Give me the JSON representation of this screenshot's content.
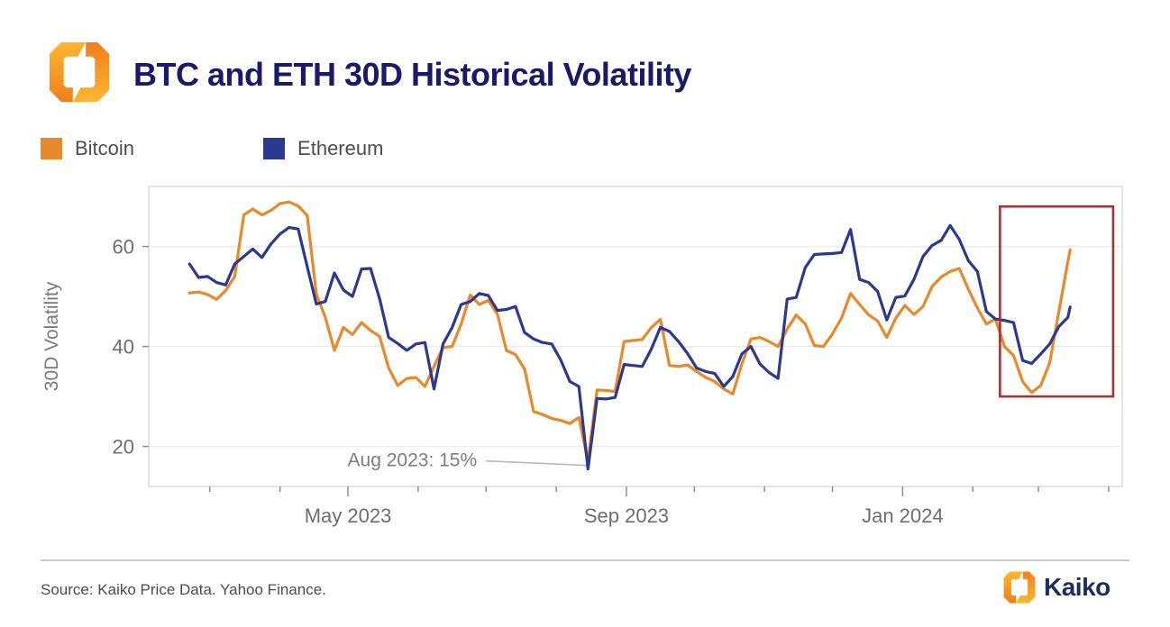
{
  "header": {
    "title": "BTC and ETH 30D Historical Volatility"
  },
  "legend": {
    "items": [
      {
        "label": "Bitcoin",
        "color": "#E8892B"
      },
      {
        "label": "Ethereum",
        "color": "#2B3990"
      }
    ]
  },
  "chart_data": {
    "type": "line",
    "title": "BTC and ETH 30D Historical Volatility",
    "xlabel": "",
    "ylabel": "30D Volatility",
    "ylim": [
      12,
      72
    ],
    "yticks": [
      20,
      40,
      60
    ],
    "xlim": [
      "2023-02-02",
      "2024-04-07"
    ],
    "xticks_major": [
      {
        "date": "2023-05-01",
        "label": "May 2023"
      },
      {
        "date": "2023-09-01",
        "label": "Sep 2023"
      },
      {
        "date": "2024-01-01",
        "label": "Jan 2024"
      }
    ],
    "grid": "horizontal",
    "legend_position": "top-left-above-plot",
    "x": [
      "2023-02-20",
      "2023-02-24",
      "2023-02-28",
      "2023-03-04",
      "2023-03-08",
      "2023-03-12",
      "2023-03-16",
      "2023-03-20",
      "2023-03-24",
      "2023-03-28",
      "2023-04-01",
      "2023-04-05",
      "2023-04-09",
      "2023-04-13",
      "2023-04-17",
      "2023-04-21",
      "2023-04-25",
      "2023-04-29",
      "2023-05-03",
      "2023-05-07",
      "2023-05-11",
      "2023-05-15",
      "2023-05-19",
      "2023-05-23",
      "2023-05-27",
      "2023-05-31",
      "2023-06-04",
      "2023-06-08",
      "2023-06-12",
      "2023-06-16",
      "2023-06-20",
      "2023-06-24",
      "2023-06-28",
      "2023-07-02",
      "2023-07-06",
      "2023-07-10",
      "2023-07-14",
      "2023-07-18",
      "2023-07-22",
      "2023-07-26",
      "2023-07-30",
      "2023-08-03",
      "2023-08-07",
      "2023-08-11",
      "2023-08-15",
      "2023-08-19",
      "2023-08-23",
      "2023-08-27",
      "2023-08-31",
      "2023-09-04",
      "2023-09-08",
      "2023-09-12",
      "2023-09-16",
      "2023-09-20",
      "2023-09-24",
      "2023-09-28",
      "2023-10-02",
      "2023-10-06",
      "2023-10-10",
      "2023-10-14",
      "2023-10-18",
      "2023-10-22",
      "2023-10-26",
      "2023-10-30",
      "2023-11-03",
      "2023-11-07",
      "2023-11-11",
      "2023-11-15",
      "2023-11-19",
      "2023-11-23",
      "2023-11-27",
      "2023-12-01",
      "2023-12-05",
      "2023-12-09",
      "2023-12-13",
      "2023-12-17",
      "2023-12-21",
      "2023-12-25",
      "2023-12-29",
      "2024-01-02",
      "2024-01-06",
      "2024-01-10",
      "2024-01-14",
      "2024-01-18",
      "2024-01-22",
      "2024-01-26",
      "2024-01-30",
      "2024-02-03",
      "2024-02-07",
      "2024-02-11",
      "2024-02-15",
      "2024-02-19",
      "2024-02-23",
      "2024-02-27",
      "2024-03-02",
      "2024-03-06",
      "2024-03-10",
      "2024-03-14",
      "2024-03-15"
    ],
    "series": [
      {
        "name": "Bitcoin",
        "color": "#E8892B",
        "values": [
          50.7,
          50.9,
          50.4,
          49.4,
          51.2,
          54.0,
          66.3,
          67.5,
          66.3,
          67.2,
          68.6,
          68.9,
          68.1,
          66.2,
          50.5,
          45.8,
          39.2,
          43.8,
          42.4,
          44.8,
          43.2,
          42.0,
          35.7,
          32.2,
          33.6,
          33.8,
          32.0,
          36.0,
          39.8,
          40.0,
          44.5,
          50.3,
          48.4,
          49.2,
          46.5,
          39.2,
          38.4,
          35.5,
          27.0,
          26.4,
          25.6,
          25.2,
          24.6,
          25.8,
          17.1,
          31.3,
          31.2,
          31.0,
          41.0,
          41.2,
          41.4,
          43.8,
          45.4,
          36.2,
          36.0,
          36.3,
          35.0,
          33.8,
          33.0,
          31.5,
          30.5,
          36.5,
          41.5,
          41.8,
          41.0,
          40.0,
          43.5,
          46.3,
          44.5,
          40.2,
          40.0,
          42.5,
          45.7,
          50.6,
          48.4,
          46.3,
          45.1,
          41.8,
          45.7,
          48.2,
          46.4,
          48.0,
          52.0,
          53.9,
          55.0,
          55.6,
          51.5,
          47.7,
          44.5,
          45.5,
          40.0,
          38.2,
          33.0,
          30.8,
          32.2,
          36.8,
          47.0,
          57.0,
          59.3
        ]
      },
      {
        "name": "Ethereum",
        "color": "#2B3990",
        "values": [
          56.5,
          53.8,
          54.0,
          52.8,
          52.3,
          56.5,
          58.0,
          59.5,
          57.8,
          60.5,
          62.5,
          63.8,
          63.5,
          56.0,
          48.5,
          49.0,
          54.7,
          51.3,
          50.0,
          55.5,
          55.6,
          49.5,
          41.8,
          40.6,
          39.2,
          40.5,
          40.8,
          31.5,
          40.5,
          43.8,
          48.4,
          49.0,
          50.6,
          50.2,
          47.2,
          47.4,
          48.0,
          42.8,
          41.5,
          40.8,
          40.5,
          37.3,
          33.0,
          32.0,
          15.5,
          29.6,
          29.5,
          29.8,
          36.4,
          36.2,
          36.0,
          39.5,
          43.8,
          43.0,
          41.0,
          38.6,
          35.7,
          35.0,
          34.6,
          32.0,
          34.0,
          38.5,
          40.0,
          36.5,
          34.8,
          33.6,
          49.5,
          49.8,
          55.8,
          58.4,
          58.5,
          58.6,
          58.8,
          63.4,
          53.4,
          52.8,
          51.0,
          45.3,
          49.8,
          50.1,
          53.4,
          58.0,
          60.2,
          61.2,
          64.2,
          61.4,
          57.2,
          55.0,
          47.0,
          45.5,
          45.2,
          44.8,
          37.2,
          36.6,
          38.5,
          40.5,
          44.0,
          45.8,
          47.9
        ]
      }
    ],
    "annotation": {
      "text": "Aug 2023: 15%",
      "text_date": "2023-06-27",
      "text_value": 17.3,
      "line_from_date": "2023-07-01",
      "line_from_value": 17.1,
      "line_to_date": "2023-08-15",
      "line_to_value": 16.2
    },
    "highlight_box": {
      "from": "2024-02-13",
      "to": "2024-04-03",
      "value_from": 30,
      "value_to": 68,
      "color": "#A53232"
    }
  },
  "footer": {
    "source": "Source: Kaiko Price Data. Yahoo Finance.",
    "brand": "Kaiko"
  }
}
